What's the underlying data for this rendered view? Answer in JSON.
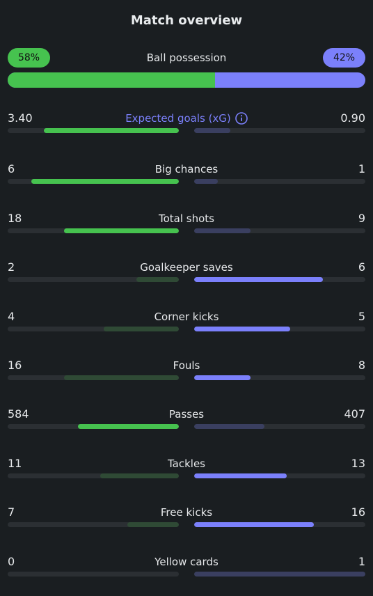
{
  "title": "Match overview",
  "colors": {
    "home": "#46c24f",
    "home_dim": "#2f4a35",
    "away": "#7b80fb",
    "away_dim": "#3a3f60",
    "track": "#2b2f33"
  },
  "possession": {
    "label": "Ball possession",
    "home": "58%",
    "away": "42%",
    "home_fraction": 0.58
  },
  "stats": [
    {
      "label": "Expected goals (xG)",
      "home": "3.40",
      "away": "0.90",
      "home_fill": 0.79,
      "away_fill": 0.21,
      "highlight": "home",
      "accent": true,
      "icon": "info-icon"
    },
    {
      "label": "Big chances",
      "home": "6",
      "away": "1",
      "home_fill": 0.86,
      "away_fill": 0.14,
      "highlight": "home"
    },
    {
      "label": "Total shots",
      "home": "18",
      "away": "9",
      "home_fill": 0.67,
      "away_fill": 0.33,
      "highlight": "home"
    },
    {
      "label": "Goalkeeper saves",
      "home": "2",
      "away": "6",
      "home_fill": 0.25,
      "away_fill": 0.75,
      "highlight": "away"
    },
    {
      "label": "Corner kicks",
      "home": "4",
      "away": "5",
      "home_fill": 0.44,
      "away_fill": 0.56,
      "highlight": "away"
    },
    {
      "label": "Fouls",
      "home": "16",
      "away": "8",
      "home_fill": 0.67,
      "away_fill": 0.33,
      "highlight": "away"
    },
    {
      "label": "Passes",
      "home": "584",
      "away": "407",
      "home_fill": 0.59,
      "away_fill": 0.41,
      "highlight": "home"
    },
    {
      "label": "Tackles",
      "home": "11",
      "away": "13",
      "home_fill": 0.46,
      "away_fill": 0.54,
      "highlight": "away"
    },
    {
      "label": "Free kicks",
      "home": "7",
      "away": "16",
      "home_fill": 0.3,
      "away_fill": 0.7,
      "highlight": "away"
    },
    {
      "label": "Yellow cards",
      "home": "0",
      "away": "1",
      "home_fill": 0.0,
      "away_fill": 1.0,
      "highlight": "none"
    }
  ]
}
